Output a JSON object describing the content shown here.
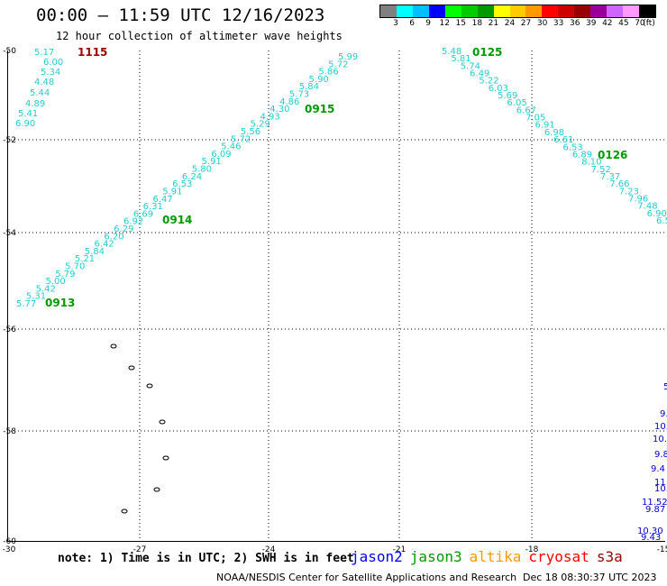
{
  "header": {
    "title": "00:00 — 11:59 UTC 12/16/2023",
    "subtitle": "12 hour collection of altimeter wave heights"
  },
  "colorbar": {
    "colors": [
      "#808080",
      "#00ffff",
      "#00bfff",
      "#0000ff",
      "#00ff00",
      "#00cc00",
      "#009900",
      "#ffff00",
      "#ffcc00",
      "#ff9900",
      "#ff0000",
      "#cc0000",
      "#990000",
      "#990099",
      "#cc66ff",
      "#ff99ff",
      "#000000"
    ],
    "labels": [
      "3",
      "6",
      "9",
      "12",
      "15",
      "18",
      "21",
      "24",
      "27",
      "30",
      "33",
      "36",
      "39",
      "42",
      "45",
      "70",
      "(ft)"
    ]
  },
  "axes": {
    "y_ticks": [
      "-50",
      "-52",
      "-54",
      "-56",
      "-58",
      "-60"
    ],
    "x_ticks": [
      "-30",
      "-27",
      "-24",
      "-21",
      "-18",
      "-15"
    ]
  },
  "passes": [
    {
      "label": "1115",
      "color": "#990000"
    },
    {
      "label": "0125",
      "color": "#009900"
    },
    {
      "label": "0915",
      "color": "#009900"
    },
    {
      "label": "0126",
      "color": "#009900"
    },
    {
      "label": "0914",
      "color": "#009900"
    },
    {
      "label": "0913",
      "color": "#009900"
    }
  ],
  "track_a": [
    "5.17",
    "6.00",
    "5.34",
    "4.48",
    "5.44",
    "4.89",
    "5.41",
    "6.90"
  ],
  "track_b": [
    "5.77",
    "5.31",
    "5.42",
    "5.00",
    "5.79",
    "5.70",
    "5.21",
    "5.84",
    "6.42",
    "6.20",
    "6.29",
    "6.92",
    "6.69",
    "6.31",
    "6.47",
    "5.91",
    "6.53",
    "6.24",
    "5.80",
    "5.91",
    "6.09",
    "5.46",
    "5.72",
    "5.56",
    "5.29",
    "4.93",
    "4.30",
    "4.86",
    "5.73",
    "5.84",
    "5.90",
    "5.86",
    "5.72",
    "5.99"
  ],
  "track_c": [
    "5.48",
    "5.81",
    "5.74",
    "6.49",
    "5.22",
    "6.03",
    "5.69",
    "6.05",
    "6.67",
    "7.05",
    "6.91",
    "6.98",
    "6.61",
    "6.53",
    "6.89",
    "8.10",
    "7.52",
    "7.37",
    "7.66",
    "7.23",
    "7.96",
    "7.48",
    "6.90",
    "6.5"
  ],
  "track_d": [
    "5",
    "9.",
    "10.",
    "10.",
    "9.8",
    "9.4",
    "11.6",
    "10.0",
    "11.52",
    "9.87",
    "10.30",
    "9.43"
  ],
  "note": "note: 1) Time is in UTC; 2) SWH is in feet",
  "legend": [
    {
      "name": "jason2",
      "color": "#0000ff"
    },
    {
      "name": "jason3",
      "color": "#009900"
    },
    {
      "name": "altika",
      "color": "#ff9900"
    },
    {
      "name": "cryosat",
      "color": "#ff0000"
    },
    {
      "name": "s3a",
      "color": "#990000"
    }
  ],
  "credit": "NOAA/NESDIS Center for Satellite Applications and Research",
  "timestamp": "Dec 18 08:30:37 UTC 2023"
}
